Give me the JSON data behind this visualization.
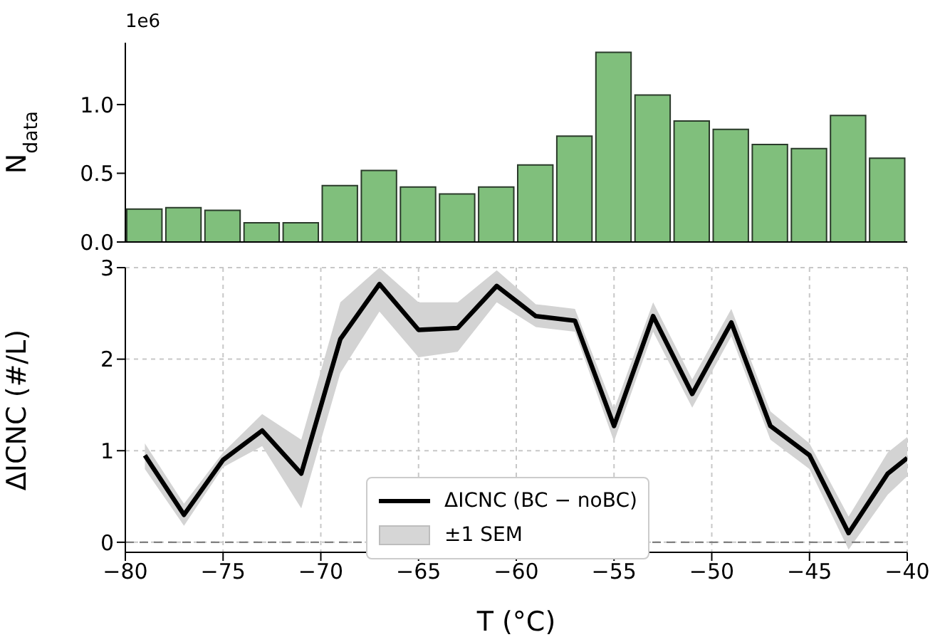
{
  "chart_data": [
    {
      "type": "histogram",
      "ylabel": "N$_{data}$",
      "annotations": [
        "1e6"
      ],
      "bins": [
        -80,
        -78,
        -76,
        -74,
        -72,
        -70,
        -68,
        -66,
        -64,
        -62,
        -60,
        -58,
        -56,
        -54,
        -52,
        -50,
        -48,
        -46,
        -44,
        -42,
        -40
      ],
      "values": [
        0.24,
        0.25,
        0.23,
        0.14,
        0.14,
        0.41,
        0.52,
        0.4,
        0.35,
        0.4,
        0.56,
        0.77,
        1.38,
        1.07,
        0.88,
        0.82,
        0.71,
        0.68,
        0.92,
        0.61
      ],
      "color": "#80bf7c",
      "xlim": [
        -80,
        -40
      ],
      "ylim": [
        0,
        1.45
      ],
      "yticks": [
        {
          "value": 0,
          "label": "0.0"
        },
        {
          "value": 0.5,
          "label": "0.5"
        },
        {
          "value": 1,
          "label": "1.0"
        }
      ],
      "tick_labels": "y",
      "grid": false
    },
    {
      "type": "line",
      "xlabel": "T (°C)",
      "ylabel": "ΔICNC (#/L)",
      "annotations": [
        "±1 SEM"
      ],
      "x": [
        -79,
        -77,
        -75,
        -73,
        -71,
        -69,
        -67,
        -65,
        -63,
        -61,
        -59,
        -57,
        -55,
        -53,
        -51,
        -49,
        -47,
        -45,
        -43,
        -41,
        -40
      ],
      "series": [
        {
          "type": "line",
          "name": "ΔICNC (BC − noBC)",
          "color": "#000000",
          "values": [
            0.95,
            0.3,
            0.9,
            1.22,
            0.75,
            2.22,
            2.82,
            2.32,
            2.34,
            2.8,
            2.47,
            2.42,
            1.27,
            2.47,
            1.62,
            2.4,
            1.27,
            0.95,
            0.1,
            0.75,
            0.92
          ],
          "lower": [
            0.8,
            0.18,
            0.82,
            1.05,
            0.37,
            1.85,
            2.52,
            2.02,
            2.08,
            2.62,
            2.35,
            2.3,
            1.1,
            2.3,
            1.47,
            2.25,
            1.12,
            0.8,
            -0.08,
            0.52,
            0.72
          ],
          "upper": [
            1.08,
            0.42,
            0.98,
            1.4,
            1.12,
            2.62,
            3.0,
            2.62,
            2.62,
            2.97,
            2.6,
            2.55,
            1.45,
            2.62,
            1.78,
            2.55,
            1.43,
            1.08,
            0.28,
            0.98,
            1.15
          ]
        }
      ],
      "xlim": [
        -80,
        -40
      ],
      "xticks": [
        -80,
        -75,
        -70,
        -65,
        -60,
        -55,
        -50,
        -45,
        -40
      ],
      "ylim": [
        -0.11,
        3
      ],
      "yticks": [
        0,
        1,
        2,
        3
      ],
      "ref_lines": [
        {
          "axis": "y",
          "value": 0,
          "color": "#808080",
          "line_style": "dashed"
        }
      ],
      "grid": true,
      "legend": "bottom",
      "marker": "none",
      "line_style": "solid"
    }
  ]
}
